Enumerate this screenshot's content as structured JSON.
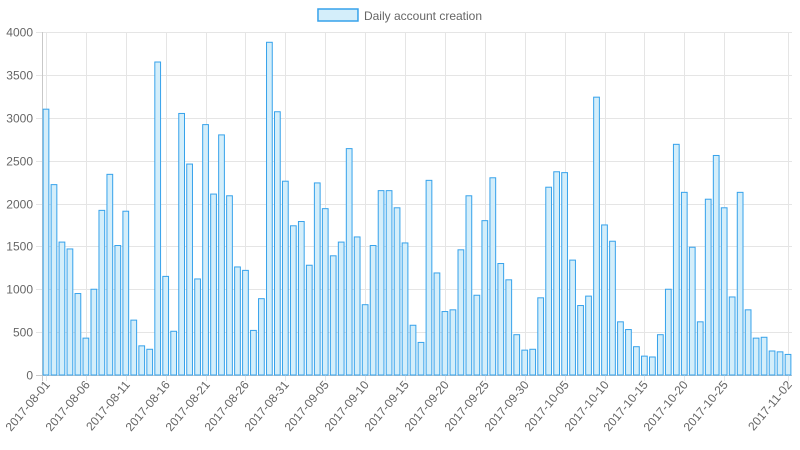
{
  "chart_data": {
    "type": "bar",
    "title": "",
    "xlabel": "",
    "ylabel": "",
    "ylim": [
      0,
      4000
    ],
    "y_ticks": [
      0,
      500,
      1000,
      1500,
      2000,
      2500,
      3000,
      3500,
      4000
    ],
    "x_tick_labels": [
      "2017-08-01",
      "2017-08-06",
      "2017-08-11",
      "2017-08-16",
      "2017-08-21",
      "2017-08-26",
      "2017-08-31",
      "2017-09-05",
      "2017-09-10",
      "2017-09-15",
      "2017-09-20",
      "2017-09-25",
      "2017-09-30",
      "2017-10-05",
      "2017-10-10",
      "2017-10-15",
      "2017-10-20",
      "2017-10-25",
      "2017-11-02"
    ],
    "grid": true,
    "legend_position": "top-center",
    "colors": {
      "fill": "#d4eefa",
      "stroke": "#36a2eb",
      "grid": "#e5e5e5",
      "text": "#666666"
    },
    "series": [
      {
        "name": "Daily account creation",
        "x": [
          "2017-08-01",
          "2017-08-02",
          "2017-08-03",
          "2017-08-04",
          "2017-08-05",
          "2017-08-06",
          "2017-08-07",
          "2017-08-08",
          "2017-08-09",
          "2017-08-10",
          "2017-08-11",
          "2017-08-12",
          "2017-08-13",
          "2017-08-14",
          "2017-08-15",
          "2017-08-16",
          "2017-08-17",
          "2017-08-18",
          "2017-08-19",
          "2017-08-20",
          "2017-08-21",
          "2017-08-22",
          "2017-08-23",
          "2017-08-24",
          "2017-08-25",
          "2017-08-26",
          "2017-08-27",
          "2017-08-28",
          "2017-08-29",
          "2017-08-30",
          "2017-08-31",
          "2017-09-01",
          "2017-09-02",
          "2017-09-03",
          "2017-09-04",
          "2017-09-05",
          "2017-09-06",
          "2017-09-07",
          "2017-09-08",
          "2017-09-09",
          "2017-09-10",
          "2017-09-11",
          "2017-09-12",
          "2017-09-13",
          "2017-09-14",
          "2017-09-15",
          "2017-09-16",
          "2017-09-17",
          "2017-09-18",
          "2017-09-19",
          "2017-09-20",
          "2017-09-21",
          "2017-09-22",
          "2017-09-23",
          "2017-09-24",
          "2017-09-25",
          "2017-09-26",
          "2017-09-27",
          "2017-09-28",
          "2017-09-29",
          "2017-09-30",
          "2017-10-01",
          "2017-10-02",
          "2017-10-03",
          "2017-10-04",
          "2017-10-05",
          "2017-10-06",
          "2017-10-07",
          "2017-10-08",
          "2017-10-09",
          "2017-10-10",
          "2017-10-11",
          "2017-10-12",
          "2017-10-13",
          "2017-10-14",
          "2017-10-15",
          "2017-10-16",
          "2017-10-17",
          "2017-10-18",
          "2017-10-19",
          "2017-10-20",
          "2017-10-21",
          "2017-10-22",
          "2017-10-23",
          "2017-10-24",
          "2017-10-25",
          "2017-10-26",
          "2017-10-27",
          "2017-10-28",
          "2017-10-29",
          "2017-10-30",
          "2017-10-31",
          "2017-11-01",
          "2017-11-02"
        ],
        "values": [
          3100,
          2220,
          1550,
          1470,
          950,
          430,
          1000,
          1920,
          2340,
          1510,
          1910,
          640,
          340,
          300,
          3650,
          1150,
          510,
          3050,
          2460,
          1120,
          2920,
          2110,
          2800,
          2090,
          1260,
          1220,
          520,
          890,
          3880,
          3070,
          2260,
          1740,
          1790,
          1280,
          2240,
          1940,
          1390,
          1550,
          2640,
          1610,
          820,
          1510,
          2150,
          2150,
          1950,
          1540,
          580,
          380,
          2270,
          1190,
          740,
          760,
          1460,
          2090,
          930,
          1800,
          2300,
          1300,
          1110,
          470,
          290,
          300,
          900,
          2190,
          2370,
          2360,
          1340,
          810,
          920,
          3240,
          1750,
          1560,
          620,
          530,
          330,
          220,
          210,
          470,
          1000,
          2690,
          2130,
          1490,
          620,
          2050,
          2560,
          1950,
          910,
          2130,
          760,
          430,
          440,
          280,
          270,
          240
        ]
      }
    ]
  }
}
